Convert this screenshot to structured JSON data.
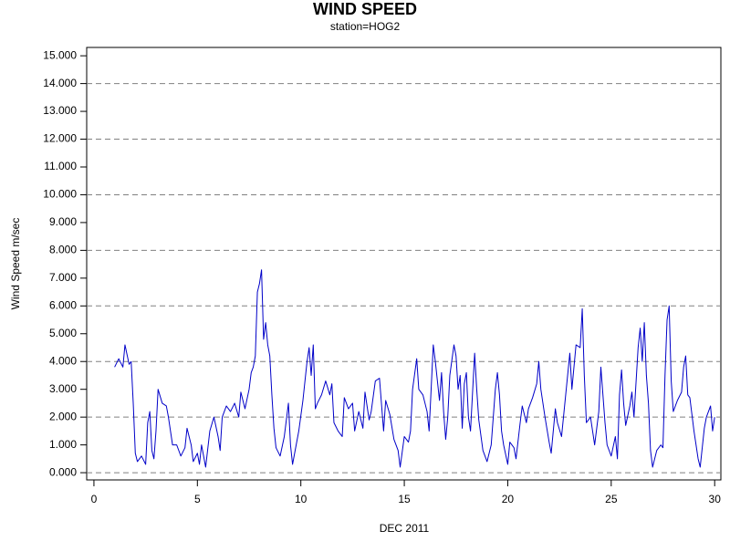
{
  "chart_data": {
    "type": "line",
    "title": "WIND SPEED",
    "subtitle": "station=HOG2",
    "x_label": "DEC 2011",
    "y_label": "Wind Speed m/sec",
    "color": "#0000c8",
    "xlim": [
      -0.35,
      30.3
    ],
    "ylim": [
      -0.26,
      15.3
    ],
    "xticks": [
      0,
      5,
      10,
      15,
      20,
      25,
      30
    ],
    "yticks": [
      {
        "value": 0,
        "label": "0.000"
      },
      {
        "value": 1,
        "label": "1.000"
      },
      {
        "value": 2,
        "label": "2.000"
      },
      {
        "value": 3,
        "label": "3.000"
      },
      {
        "value": 4,
        "label": "4.000"
      },
      {
        "value": 5,
        "label": "5.000"
      },
      {
        "value": 6,
        "label": "6.000"
      },
      {
        "value": 7,
        "label": "7.000"
      },
      {
        "value": 8,
        "label": "8.000"
      },
      {
        "value": 9,
        "label": "9.000"
      },
      {
        "value": 10,
        "label": "10.000"
      },
      {
        "value": 11,
        "label": "11.000"
      },
      {
        "value": 12,
        "label": "12.000"
      },
      {
        "value": 13,
        "label": "13.000"
      },
      {
        "value": 14,
        "label": "14.000"
      },
      {
        "value": 15,
        "label": "15.000"
      }
    ],
    "grid_lines": [
      0,
      2,
      4,
      6,
      8,
      10,
      12,
      14
    ],
    "x": [
      1.0,
      1.2,
      1.4,
      1.5,
      1.7,
      1.8,
      1.9,
      2.0,
      2.1,
      2.3,
      2.5,
      2.6,
      2.7,
      2.8,
      2.9,
      3.0,
      3.1,
      3.3,
      3.5,
      3.6,
      3.8,
      4.0,
      4.2,
      4.4,
      4.5,
      4.7,
      4.8,
      5.0,
      5.1,
      5.2,
      5.4,
      5.6,
      5.8,
      6.0,
      6.1,
      6.2,
      6.4,
      6.6,
      6.8,
      7.0,
      7.1,
      7.3,
      7.5,
      7.6,
      7.7,
      7.8,
      7.9,
      8.0,
      8.1,
      8.2,
      8.3,
      8.4,
      8.5,
      8.6,
      8.7,
      8.8,
      9.0,
      9.2,
      9.4,
      9.5,
      9.6,
      9.7,
      9.9,
      10.1,
      10.3,
      10.4,
      10.5,
      10.6,
      10.7,
      10.8,
      11.0,
      11.2,
      11.4,
      11.5,
      11.6,
      11.8,
      12.0,
      12.1,
      12.3,
      12.5,
      12.6,
      12.8,
      13.0,
      13.1,
      13.3,
      13.4,
      13.6,
      13.8,
      14.0,
      14.1,
      14.3,
      14.5,
      14.7,
      14.8,
      15.0,
      15.2,
      15.3,
      15.4,
      15.6,
      15.7,
      15.9,
      16.1,
      16.2,
      16.4,
      16.5,
      16.7,
      16.8,
      16.9,
      17.0,
      17.1,
      17.2,
      17.4,
      17.5,
      17.6,
      17.7,
      17.8,
      17.9,
      18.0,
      18.1,
      18.2,
      18.4,
      18.5,
      18.6,
      18.8,
      19.0,
      19.2,
      19.4,
      19.5,
      19.6,
      19.7,
      19.8,
      20.0,
      20.1,
      20.3,
      20.4,
      20.6,
      20.7,
      20.9,
      21.0,
      21.2,
      21.4,
      21.5,
      21.6,
      21.8,
      22.0,
      22.1,
      22.3,
      22.4,
      22.6,
      22.8,
      23.0,
      23.1,
      23.2,
      23.3,
      23.5,
      23.6,
      23.7,
      23.8,
      24.0,
      24.1,
      24.2,
      24.4,
      24.5,
      24.6,
      24.7,
      24.8,
      25.0,
      25.2,
      25.3,
      25.4,
      25.5,
      25.6,
      25.7,
      25.9,
      26.0,
      26.1,
      26.3,
      26.4,
      26.5,
      26.6,
      26.7,
      26.8,
      26.9,
      27.0,
      27.2,
      27.4,
      27.5,
      27.6,
      27.7,
      27.8,
      27.9,
      28.0,
      28.2,
      28.4,
      28.5,
      28.6,
      28.7,
      28.8,
      29.0,
      29.2,
      29.3,
      29.5,
      29.6,
      29.8,
      29.9,
      30.0
    ],
    "values": [
      3.8,
      4.1,
      3.8,
      4.6,
      3.9,
      4.0,
      2.5,
      0.7,
      0.4,
      0.6,
      0.3,
      1.8,
      2.2,
      0.8,
      0.5,
      1.5,
      3.0,
      2.5,
      2.4,
      2.0,
      1.0,
      1.0,
      0.6,
      0.9,
      1.6,
      1.0,
      0.4,
      0.7,
      0.3,
      1.0,
      0.2,
      1.5,
      2.0,
      1.3,
      0.8,
      2.0,
      2.4,
      2.2,
      2.5,
      2.0,
      2.9,
      2.3,
      3.0,
      3.6,
      3.8,
      4.2,
      6.5,
      6.8,
      7.3,
      4.8,
      5.4,
      4.6,
      4.2,
      2.8,
      1.6,
      0.9,
      0.6,
      1.3,
      2.5,
      1.0,
      0.3,
      0.7,
      1.5,
      2.6,
      4.0,
      4.5,
      3.5,
      4.6,
      2.3,
      2.5,
      2.8,
      3.3,
      2.8,
      3.2,
      1.8,
      1.5,
      1.3,
      2.7,
      2.3,
      2.5,
      1.5,
      2.2,
      1.6,
      2.9,
      1.9,
      2.2,
      3.3,
      3.4,
      1.5,
      2.6,
      2.1,
      1.2,
      0.8,
      0.2,
      1.3,
      1.1,
      1.5,
      3.0,
      4.1,
      3.0,
      2.8,
      2.2,
      1.5,
      4.6,
      4.0,
      2.6,
      3.6,
      2.2,
      1.2,
      2.0,
      3.5,
      4.6,
      4.2,
      3.0,
      3.5,
      1.6,
      3.2,
      3.6,
      2.0,
      1.5,
      4.3,
      3.0,
      1.9,
      0.8,
      0.4,
      1.0,
      3.0,
      3.6,
      2.8,
      1.5,
      1.0,
      0.3,
      1.1,
      0.9,
      0.5,
      1.8,
      2.4,
      1.8,
      2.3,
      2.7,
      3.2,
      4.0,
      3.0,
      2.0,
      1.1,
      0.7,
      2.3,
      1.8,
      1.3,
      2.8,
      4.3,
      3.0,
      3.8,
      4.6,
      4.5,
      5.9,
      3.5,
      1.8,
      2.0,
      1.5,
      1.0,
      2.2,
      3.8,
      2.8,
      1.8,
      1.0,
      0.6,
      1.3,
      0.5,
      2.8,
      3.7,
      2.5,
      1.7,
      2.4,
      2.9,
      2.0,
      4.5,
      5.2,
      4.0,
      5.4,
      3.5,
      2.5,
      0.8,
      0.2,
      0.8,
      1.0,
      0.9,
      3.5,
      5.5,
      6.0,
      3.3,
      2.2,
      2.6,
      2.9,
      3.8,
      4.2,
      2.8,
      2.7,
      1.5,
      0.5,
      0.2,
      1.6,
      2.0,
      2.4,
      1.5,
      2.0
    ]
  }
}
